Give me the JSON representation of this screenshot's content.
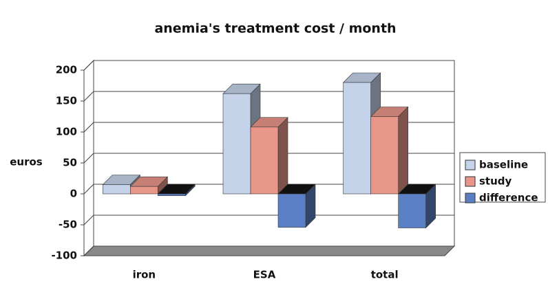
{
  "chart_data": {
    "type": "bar3d",
    "title": "anemia's treatment cost / month",
    "y_label": "euros",
    "categories": [
      "iron",
      "ESA",
      "total"
    ],
    "series": [
      {
        "name": "baseline",
        "color": "#c5d3ea",
        "values": [
          15,
          162,
          180
        ]
      },
      {
        "name": "study",
        "color": "#e8958a",
        "values": [
          12,
          108,
          125
        ]
      },
      {
        "name": "difference",
        "color": "#5b7fc4",
        "values": [
          -3,
          -54,
          -55
        ]
      }
    ],
    "ylim": [
      -100,
      200
    ],
    "yticks": [
      -100,
      -50,
      0,
      50,
      100,
      150,
      200
    ],
    "grid": true,
    "legend": "right"
  }
}
